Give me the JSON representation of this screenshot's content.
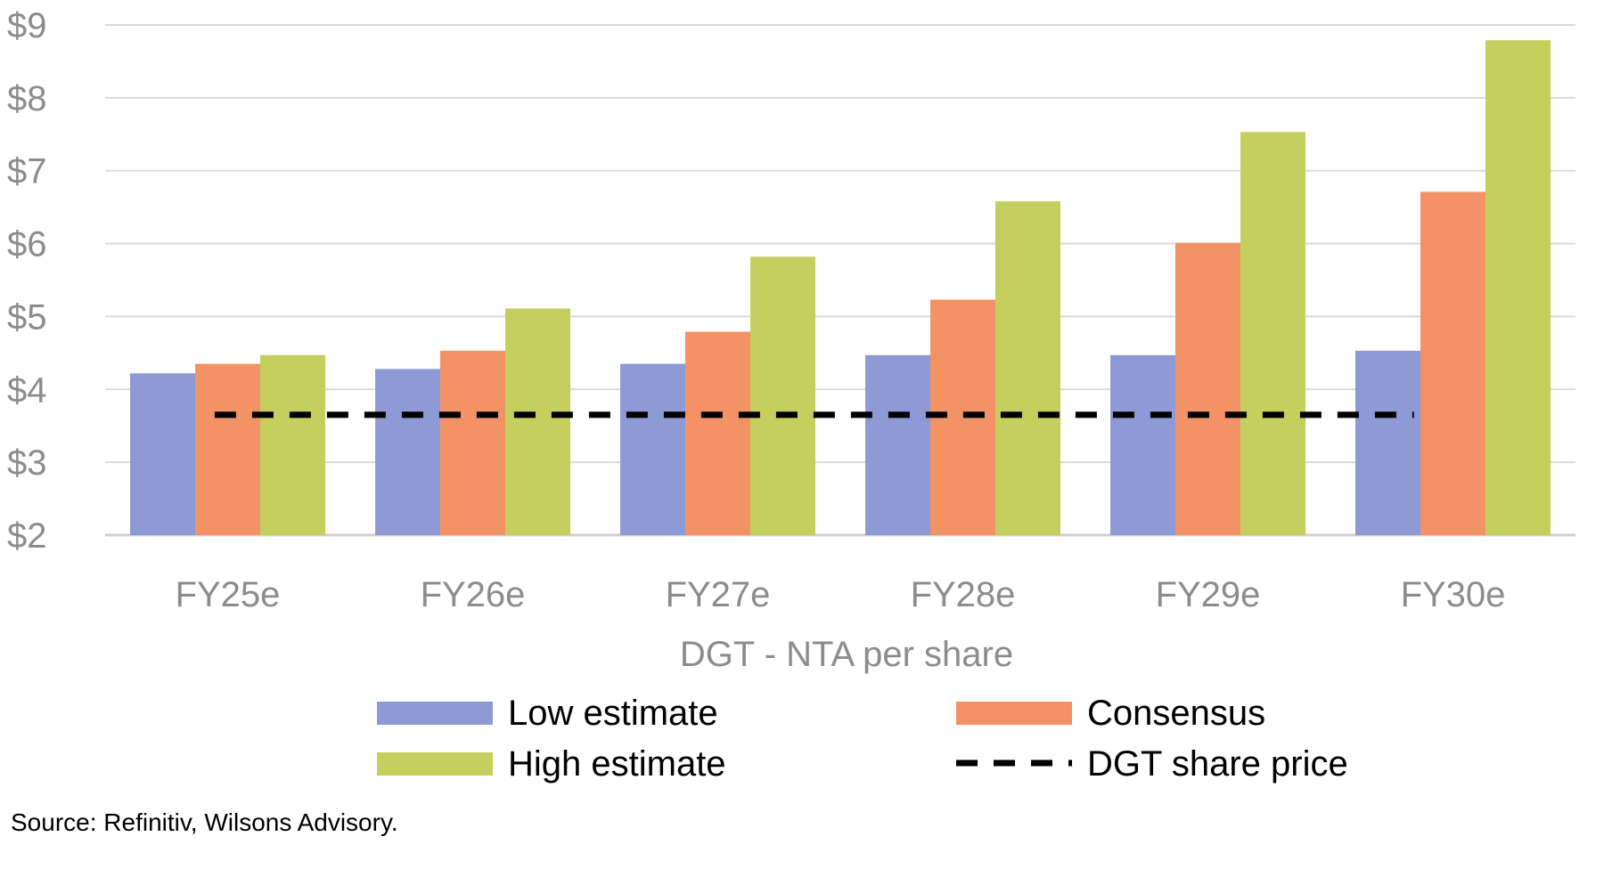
{
  "chart_data": {
    "type": "bar",
    "title": "",
    "xlabel": "DGT - NTA per share",
    "ylabel": "",
    "ylim": [
      2,
      9
    ],
    "yticks": [
      2,
      3,
      4,
      5,
      6,
      7,
      8,
      9
    ],
    "ytick_labels": [
      "$2",
      "$3",
      "$4",
      "$5",
      "$6",
      "$7",
      "$8",
      "$9"
    ],
    "grid": "horizontal",
    "categories": [
      "FY25e",
      "FY26e",
      "FY27e",
      "FY28e",
      "FY29e",
      "FY30e"
    ],
    "series": [
      {
        "name": "Low estimate",
        "color": "#8e9ad6",
        "values": [
          4.22,
          4.28,
          4.35,
          4.47,
          4.47,
          4.53
        ]
      },
      {
        "name": "Consensus",
        "color": "#f39365",
        "values": [
          4.35,
          4.53,
          4.79,
          5.23,
          6.01,
          6.71
        ]
      },
      {
        "name": "High estimate",
        "color": "#c4cf5d",
        "values": [
          4.47,
          5.11,
          5.82,
          6.58,
          7.53,
          8.79
        ]
      }
    ],
    "line": {
      "name": "DGT share price",
      "color": "#000000",
      "style": "dashed",
      "value": 3.65
    },
    "legend_position": "bottom",
    "source": "Source: Refinitiv, Wilsons Advisory."
  }
}
